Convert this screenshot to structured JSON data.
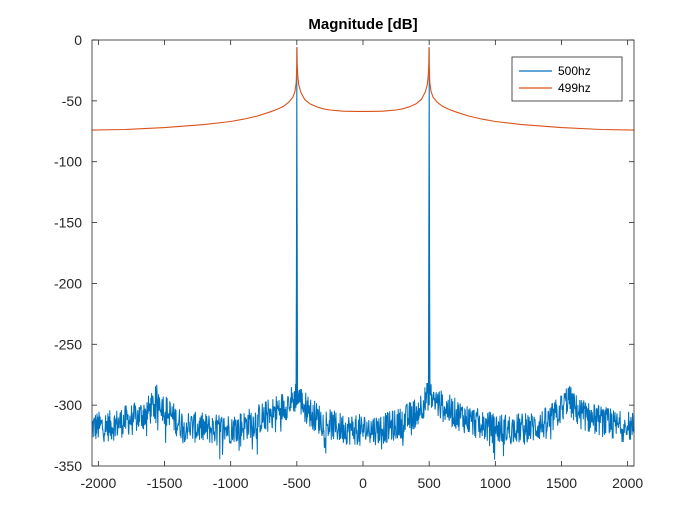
{
  "chart_data": {
    "type": "line",
    "title": "Magnitude [dB]",
    "xlabel": "",
    "ylabel": "",
    "xlim": [
      -2048,
      2048
    ],
    "ylim": [
      -350,
      0
    ],
    "xticks": [
      -2000,
      -1500,
      -1000,
      -500,
      0,
      500,
      1000,
      1500,
      2000
    ],
    "yticks": [
      0,
      -50,
      -100,
      -150,
      -200,
      -250,
      -300,
      -350
    ],
    "grid": false,
    "legend_position": "top-right",
    "series": [
      {
        "name": "500hz",
        "color": "#0072BD",
        "description_points": {
          "x": [
            -2048,
            -1900,
            -1800,
            -1700,
            -1600,
            -1550,
            -1500,
            -1400,
            -1300,
            -1200,
            -1100,
            -1000,
            -900,
            -800,
            -700,
            -600,
            -520,
            -505,
            -500,
            -495,
            -480,
            -400,
            -300,
            -200,
            -100,
            0,
            100,
            200,
            300,
            400,
            480,
            495,
            500,
            505,
            520,
            600,
            700,
            800,
            900,
            1000,
            1100,
            1200,
            1300,
            1400,
            1500,
            1550,
            1600,
            1700,
            1800,
            1900,
            2048
          ],
          "y": [
            -318,
            -317,
            -313,
            -310,
            -303,
            -294,
            -303,
            -314,
            -318,
            -319,
            -320,
            -319,
            -317,
            -312,
            -307,
            -301,
            -295,
            -291,
            -6,
            -291,
            -295,
            -306,
            -314,
            -318,
            -320,
            -320,
            -320,
            -318,
            -314,
            -306,
            -295,
            -291,
            -6,
            -291,
            -295,
            -301,
            -307,
            -312,
            -317,
            -319,
            -320,
            -319,
            -318,
            -314,
            -303,
            -294,
            -303,
            -310,
            -313,
            -317,
            -318
          ]
        }
      },
      {
        "name": "499hz",
        "color": "#D95319",
        "description_points": {
          "x": [
            -2048,
            -1800,
            -1500,
            -1200,
            -1000,
            -900,
            -800,
            -700,
            -650,
            -600,
            -560,
            -530,
            -515,
            -505,
            -500,
            -499,
            -497,
            -493,
            -485,
            -470,
            -440,
            -400,
            -350,
            -300,
            -250,
            -200,
            -150,
            -100,
            -50,
            0,
            50,
            100,
            150,
            200,
            250,
            300,
            350,
            400,
            440,
            470,
            485,
            493,
            497,
            499,
            500,
            505,
            515,
            530,
            560,
            600,
            650,
            700,
            800,
            900,
            1000,
            1200,
            1500,
            1800,
            2048
          ],
          "y": [
            -74,
            -73.5,
            -72,
            -69.5,
            -67,
            -65,
            -62.5,
            -59,
            -57,
            -54.5,
            -51,
            -47,
            -42.5,
            -35,
            -20,
            -6,
            -20,
            -30,
            -37,
            -43,
            -49,
            -52.5,
            -55,
            -56.5,
            -57.5,
            -58,
            -58.5,
            -58.6,
            -58.7,
            -58.7,
            -58.7,
            -58.6,
            -58.5,
            -58,
            -57.5,
            -56.5,
            -55,
            -52.5,
            -49,
            -43,
            -37,
            -30,
            -20,
            -6,
            -20,
            -35,
            -42.5,
            -47,
            -51,
            -54.5,
            -57,
            -59,
            -62.5,
            -65,
            -67,
            -69.5,
            -72,
            -73.5,
            -74
          ]
        }
      }
    ]
  }
}
